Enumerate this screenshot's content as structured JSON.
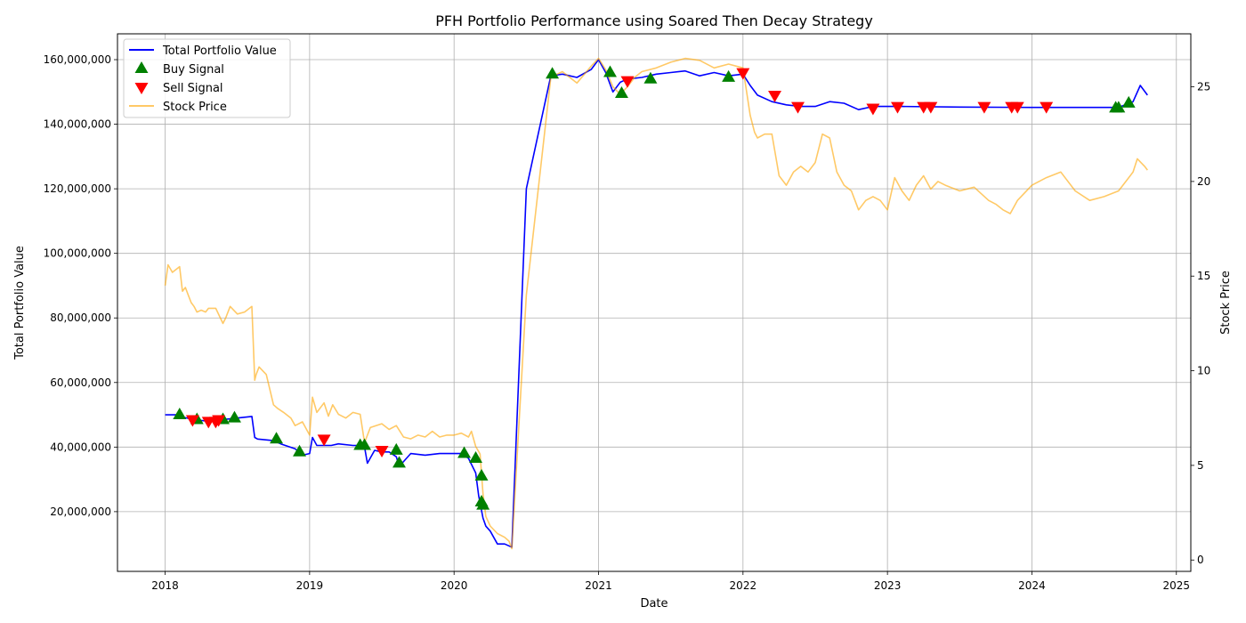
{
  "chart_data": {
    "type": "line",
    "title": "PFH Portfolio Performance using Soared Then Decay Strategy",
    "xlabel": "Date",
    "ylabel": "Total Portfolio Value",
    "y2label": "Stock Price",
    "xlim": [
      2017.67,
      2025.1
    ],
    "ylim": [
      1500000,
      168000000
    ],
    "y2lim": [
      -0.6,
      27.8
    ],
    "grid": true,
    "legend_position": "top-left",
    "x_ticks": [
      "2018",
      "2019",
      "2020",
      "2021",
      "2022",
      "2023",
      "2024",
      "2025"
    ],
    "x_tick_values": [
      2018,
      2019,
      2020,
      2021,
      2022,
      2023,
      2024,
      2025
    ],
    "y_ticks": [
      "20,000,000",
      "40,000,000",
      "60,000,000",
      "80,000,000",
      "100,000,000",
      "120,000,000",
      "140,000,000",
      "160,000,000"
    ],
    "y_tick_values": [
      20000000,
      40000000,
      60000000,
      80000000,
      100000000,
      120000000,
      140000000,
      160000000
    ],
    "y2_ticks": [
      "0",
      "5",
      "10",
      "15",
      "20",
      "25"
    ],
    "y2_tick_values": [
      0,
      5,
      10,
      15,
      20,
      25
    ],
    "series": [
      {
        "name": "Total Portfolio Value",
        "kind": "line",
        "axis": "left",
        "color": "#0000ff",
        "x": [
          2018.0,
          2018.08,
          2018.1,
          2018.2,
          2018.3,
          2018.4,
          2018.5,
          2018.6,
          2018.62,
          2018.64,
          2018.75,
          2018.8,
          2018.9,
          2018.95,
          2019.0,
          2019.02,
          2019.05,
          2019.1,
          2019.15,
          2019.2,
          2019.3,
          2019.35,
          2019.38,
          2019.4,
          2019.45,
          2019.5,
          2019.55,
          2019.6,
          2019.62,
          2019.7,
          2019.8,
          2019.9,
          2020.0,
          2020.05,
          2020.1,
          2020.15,
          2020.17,
          2020.2,
          2020.22,
          2020.25,
          2020.3,
          2020.35,
          2020.4,
          2020.5,
          2020.67,
          2020.75,
          2020.85,
          2020.95,
          2021.0,
          2021.05,
          2021.1,
          2021.15,
          2021.2,
          2021.3,
          2021.4,
          2021.5,
          2021.6,
          2021.7,
          2021.8,
          2021.9,
          2022.0,
          2022.05,
          2022.1,
          2022.2,
          2022.3,
          2022.4,
          2022.5,
          2022.6,
          2022.7,
          2022.8,
          2022.9,
          2023.0,
          2023.1,
          2023.5,
          2024.0,
          2024.5,
          2024.6,
          2024.7,
          2024.75,
          2024.8
        ],
        "values": [
          50000000,
          50000000,
          49500000,
          48500000,
          48000000,
          48500000,
          49000000,
          49500000,
          43000000,
          42500000,
          42000000,
          41000000,
          39500000,
          37500000,
          38000000,
          43000000,
          40500000,
          40500000,
          40500000,
          41000000,
          40500000,
          40500000,
          40000000,
          35000000,
          39000000,
          38500000,
          38500000,
          37000000,
          34000000,
          38000000,
          37500000,
          38000000,
          38000000,
          38000000,
          36500000,
          32000000,
          25000000,
          18000000,
          15500000,
          14000000,
          10000000,
          10000000,
          9000000,
          120000000,
          155000000,
          155500000,
          154500000,
          157000000,
          160000000,
          156000000,
          150000000,
          153000000,
          154000000,
          154500000,
          155500000,
          156000000,
          156500000,
          155000000,
          156000000,
          155000000,
          155500000,
          152000000,
          149000000,
          147000000,
          146000000,
          145500000,
          145500000,
          147000000,
          146500000,
          144500000,
          145500000,
          145500000,
          145500000,
          145300000,
          145200000,
          145200000,
          145200000,
          147000000,
          152000000,
          149000000
        ]
      },
      {
        "name": "Buy Signal",
        "kind": "marker",
        "axis": "left",
        "marker": "triangle-up",
        "color": "#008000",
        "x": [
          2018.1,
          2018.22,
          2018.4,
          2018.48,
          2018.77,
          2018.93,
          2019.35,
          2019.38,
          2019.6,
          2019.62,
          2020.07,
          2020.15,
          2020.19,
          2020.19,
          2020.2,
          2020.68,
          2021.08,
          2021.16,
          2021.36,
          2021.9,
          2024.58,
          2024.6,
          2024.67
        ],
        "values": [
          50000000,
          48500000,
          48500000,
          49000000,
          42500000,
          38500000,
          40500000,
          40500000,
          39000000,
          35000000,
          38000000,
          36500000,
          31000000,
          23000000,
          22000000,
          155500000,
          156000000,
          149500000,
          154000000,
          154500000,
          145000000,
          145000000,
          146500000
        ]
      },
      {
        "name": "Sell Signal",
        "kind": "marker",
        "axis": "left",
        "marker": "triangle-down",
        "color": "#ff0000",
        "x": [
          2018.19,
          2018.3,
          2018.35,
          2018.37,
          2019.1,
          2019.5,
          2021.2,
          2022.0,
          2022.22,
          2022.38,
          2022.9,
          2023.07,
          2023.25,
          2023.3,
          2023.67,
          2023.86,
          2023.9,
          2024.1
        ],
        "values": [
          48500000,
          48000000,
          48000000,
          48500000,
          42500000,
          39000000,
          153500000,
          156000000,
          149000000,
          145500000,
          145000000,
          145500000,
          145500000,
          145500000,
          145500000,
          145500000,
          145500000,
          145500000
        ]
      },
      {
        "name": "Stock Price",
        "kind": "line",
        "axis": "right",
        "color": "#ffa500",
        "opacity": 0.6,
        "x": [
          2018.0,
          2018.02,
          2018.05,
          2018.1,
          2018.12,
          2018.14,
          2018.16,
          2018.18,
          2018.2,
          2018.22,
          2018.25,
          2018.28,
          2018.3,
          2018.35,
          2018.4,
          2018.42,
          2018.45,
          2018.5,
          2018.55,
          2018.6,
          2018.62,
          2018.63,
          2018.65,
          2018.7,
          2018.75,
          2018.78,
          2018.82,
          2018.87,
          2018.9,
          2018.95,
          2019.0,
          2019.02,
          2019.05,
          2019.1,
          2019.13,
          2019.16,
          2019.2,
          2019.25,
          2019.3,
          2019.35,
          2019.38,
          2019.42,
          2019.5,
          2019.55,
          2019.6,
          2019.65,
          2019.7,
          2019.75,
          2019.8,
          2019.85,
          2019.9,
          2019.95,
          2020.0,
          2020.05,
          2020.1,
          2020.12,
          2020.15,
          2020.18,
          2020.2,
          2020.22,
          2020.25,
          2020.3,
          2020.35,
          2020.38,
          2020.4,
          2020.5,
          2020.67,
          2020.75,
          2020.85,
          2020.95,
          2021.0,
          2021.05,
          2021.1,
          2021.15,
          2021.2,
          2021.25,
          2021.3,
          2021.4,
          2021.5,
          2021.6,
          2021.7,
          2021.8,
          2021.9,
          2022.0,
          2022.05,
          2022.08,
          2022.1,
          2022.15,
          2022.2,
          2022.25,
          2022.3,
          2022.35,
          2022.4,
          2022.45,
          2022.5,
          2022.55,
          2022.6,
          2022.65,
          2022.7,
          2022.75,
          2022.8,
          2022.85,
          2022.9,
          2022.95,
          2023.0,
          2023.05,
          2023.1,
          2023.15,
          2023.2,
          2023.25,
          2023.3,
          2023.35,
          2023.4,
          2023.5,
          2023.6,
          2023.7,
          2023.75,
          2023.8,
          2023.85,
          2023.9,
          2024.0,
          2024.1,
          2024.2,
          2024.3,
          2024.4,
          2024.5,
          2024.6,
          2024.7,
          2024.73,
          2024.78,
          2024.8
        ],
        "values": [
          14.5,
          15.6,
          15.2,
          15.5,
          14.2,
          14.4,
          14.0,
          13.6,
          13.4,
          13.1,
          13.2,
          13.1,
          13.3,
          13.3,
          12.5,
          12.8,
          13.4,
          13.0,
          13.1,
          13.4,
          9.5,
          9.8,
          10.2,
          9.8,
          8.2,
          8.0,
          7.8,
          7.5,
          7.1,
          7.3,
          6.6,
          8.6,
          7.8,
          8.3,
          7.6,
          8.2,
          7.7,
          7.5,
          7.8,
          7.7,
          6.2,
          7.0,
          7.2,
          6.9,
          7.1,
          6.5,
          6.4,
          6.6,
          6.5,
          6.8,
          6.5,
          6.6,
          6.6,
          6.7,
          6.5,
          6.8,
          6.0,
          5.6,
          3.5,
          2.3,
          1.8,
          1.4,
          1.2,
          1.0,
          0.6,
          14.0,
          25.5,
          25.8,
          25.2,
          26.1,
          26.5,
          25.9,
          25.0,
          24.6,
          25.0,
          25.5,
          25.8,
          26.0,
          26.3,
          26.5,
          26.4,
          26.0,
          26.2,
          26.0,
          23.5,
          22.6,
          22.3,
          22.5,
          22.5,
          20.3,
          19.8,
          20.5,
          20.8,
          20.5,
          21.0,
          22.5,
          22.3,
          20.5,
          19.8,
          19.5,
          18.5,
          19.0,
          19.2,
          19.0,
          18.5,
          20.2,
          19.5,
          19.0,
          19.8,
          20.3,
          19.6,
          20.0,
          19.8,
          19.5,
          19.7,
          19.0,
          18.8,
          18.5,
          18.3,
          19.0,
          19.8,
          20.2,
          20.5,
          19.5,
          19.0,
          19.2,
          19.5,
          20.5,
          21.2,
          20.8,
          20.6
        ]
      }
    ]
  }
}
